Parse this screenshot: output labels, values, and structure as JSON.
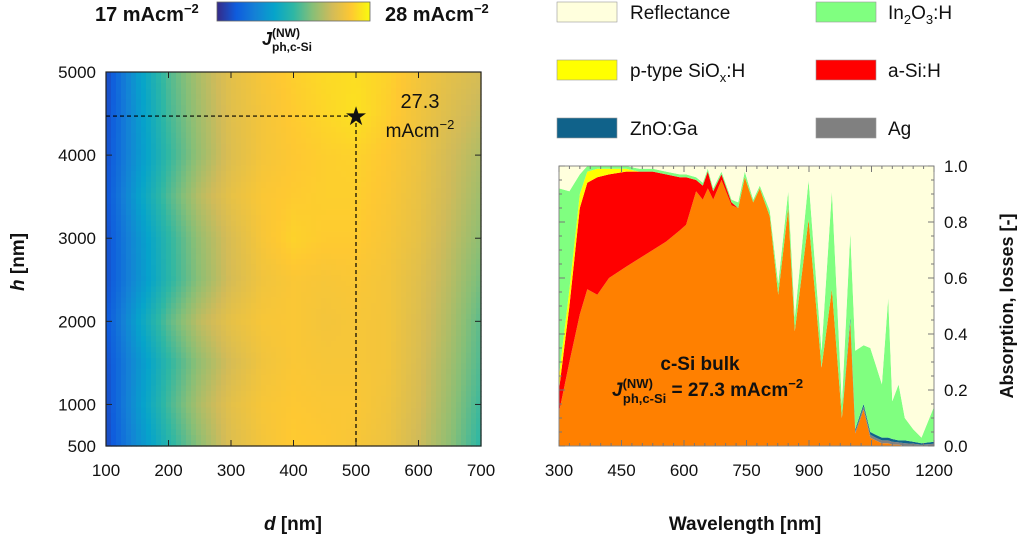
{
  "colorbar": {
    "min_label": "17 mAcm",
    "min_sup": "−2",
    "max_label": "28 mAcm",
    "max_sup": "−2",
    "title_main": "J",
    "title_sup": "(NW)",
    "title_sub": "ph,c-Si",
    "colormap": "parula",
    "min": 17,
    "max": 28
  },
  "legend": {
    "position": "top-right",
    "items": [
      {
        "label": "Reflectance",
        "color": "#ffffdd"
      },
      {
        "label": "In",
        "sub1": "2",
        "mid": "O",
        "sub2": "3",
        "tail": ":H",
        "color": "#80ff80"
      },
      {
        "label": "p-type SiO",
        "sub": "x",
        "tail": ":H",
        "color": "#ffff00"
      },
      {
        "label": "a-Si:H",
        "color": "#ff0000"
      },
      {
        "label": "ZnO:Ga",
        "color": "#10628a"
      },
      {
        "label": "Ag",
        "color": "#808080"
      }
    ]
  },
  "chart_data": [
    {
      "type": "heatmap",
      "xlabel_var": "d",
      "xlabel_unit": " [nm]",
      "ylabel_var": "h",
      "ylabel_unit": " [nm]",
      "xlim": [
        100,
        700
      ],
      "ylim": [
        500,
        5000
      ],
      "xticks": [
        "100",
        "200",
        "300",
        "400",
        "500",
        "600",
        "700"
      ],
      "yticks": [
        "500",
        "1000",
        "2000",
        "3000",
        "4000",
        "5000"
      ],
      "d": [
        100,
        150,
        200,
        250,
        300,
        350,
        400,
        450,
        500,
        550,
        600,
        650,
        700
      ],
      "h": [
        5000,
        4500,
        4000,
        3500,
        3000,
        2500,
        2000,
        1500,
        1000,
        500
      ],
      "values": [
        [
          17.8,
          20.8,
          23.0,
          24.6,
          25.8,
          26.4,
          26.8,
          27.1,
          27.2,
          26.9,
          26.3,
          25.8,
          25.4
        ],
        [
          17.9,
          20.6,
          22.8,
          24.4,
          25.7,
          26.3,
          26.7,
          27.0,
          27.3,
          26.8,
          26.2,
          25.6,
          25.0
        ],
        [
          18.0,
          20.5,
          22.5,
          24.2,
          25.6,
          26.3,
          26.6,
          26.8,
          26.9,
          26.6,
          26.1,
          25.3,
          24.6
        ],
        [
          18.1,
          20.9,
          23.0,
          24.8,
          25.9,
          26.5,
          26.7,
          26.8,
          26.8,
          26.5,
          26.0,
          25.2,
          24.3
        ],
        [
          18.0,
          20.4,
          22.4,
          24.2,
          25.5,
          26.4,
          26.9,
          26.7,
          26.7,
          26.4,
          25.9,
          25.0,
          24.0
        ],
        [
          18.0,
          20.3,
          22.3,
          24.0,
          25.4,
          26.2,
          26.5,
          26.4,
          26.5,
          26.3,
          25.7,
          24.8,
          23.6
        ],
        [
          18.2,
          21.0,
          23.2,
          24.9,
          25.9,
          26.4,
          26.5,
          26.3,
          26.4,
          26.3,
          25.6,
          24.6,
          23.2
        ],
        [
          18.0,
          20.4,
          22.4,
          24.1,
          25.4,
          26.2,
          26.5,
          26.4,
          26.4,
          26.3,
          25.5,
          24.4,
          23.0
        ],
        [
          17.9,
          20.6,
          22.8,
          24.6,
          25.8,
          26.4,
          26.6,
          26.5,
          26.5,
          26.2,
          25.4,
          24.2,
          22.7
        ],
        [
          17.8,
          20.2,
          22.2,
          24.0,
          25.6,
          26.3,
          26.7,
          26.6,
          26.4,
          26.1,
          25.2,
          24.0,
          22.4
        ]
      ],
      "optimum": {
        "d": 500,
        "h": 4470,
        "value_label": "27.3",
        "unit": "mAcm",
        "unit_sup": "−2"
      }
    },
    {
      "type": "area",
      "stacked": true,
      "xlabel": "Wavelength [nm]",
      "ylabel": "Absorption, losses [-]",
      "xlim": [
        300,
        1200
      ],
      "ylim": [
        0,
        1
      ],
      "xticks": [
        "300",
        "450",
        "600",
        "750",
        "900",
        "1050",
        "1200"
      ],
      "yticks": [
        "0.0",
        "0.2",
        "0.4",
        "0.6",
        "0.8",
        "1.0"
      ],
      "x": [
        300,
        325,
        350,
        368,
        392,
        420,
        461,
        493,
        525,
        557,
        590,
        605,
        629,
        645,
        657,
        670,
        690,
        714,
        730,
        746,
        766,
        782,
        806,
        826,
        850,
        866,
        899,
        930,
        955,
        979,
        999,
        1011,
        1031,
        1047,
        1060,
        1075,
        1090,
        1100,
        1115,
        1130,
        1150,
        1170,
        1200
      ],
      "series": [
        {
          "name": "c-Si bulk",
          "color": "#ff8000",
          "values": [
            0.12,
            0.3,
            0.47,
            0.56,
            0.54,
            0.6,
            0.64,
            0.67,
            0.7,
            0.73,
            0.77,
            0.79,
            0.91,
            0.88,
            0.92,
            0.88,
            0.95,
            0.86,
            0.85,
            0.96,
            0.87,
            0.92,
            0.82,
            0.54,
            0.85,
            0.41,
            0.81,
            0.28,
            0.56,
            0.1,
            0.44,
            0.045,
            0.13,
            0.03,
            0.02,
            0.01,
            0.01,
            0.005,
            0.005,
            0,
            0,
            0,
            0
          ]
        },
        {
          "name": "Ag",
          "color": "#808080",
          "values": [
            0,
            0,
            0,
            0,
            0,
            0,
            0,
            0,
            0,
            0,
            0,
            0,
            0,
            0,
            0,
            0,
            0,
            0,
            0,
            0,
            0,
            0,
            0,
            0,
            0,
            0,
            0,
            0,
            0,
            0,
            0.01,
            0.008,
            0.01,
            0.01,
            0.01,
            0.01,
            0.01,
            0.01,
            0.008,
            0.01,
            0.008,
            0.005,
            0.008
          ]
        },
        {
          "name": "ZnO:Ga",
          "color": "#10628a",
          "values": [
            0,
            0,
            0,
            0,
            0,
            0,
            0,
            0,
            0,
            0,
            0,
            0,
            0,
            0,
            0,
            0,
            0,
            0,
            0,
            0,
            0,
            0,
            0,
            0,
            0,
            0,
            0,
            0,
            0,
            0,
            0.01,
            0.007,
            0.01,
            0.01,
            0.01,
            0.01,
            0.01,
            0.01,
            0.007,
            0.01,
            0.007,
            0.005,
            0.007
          ]
        },
        {
          "name": "a-Si:H",
          "color": "#ff0000",
          "values": [
            0.08,
            0.2,
            0.38,
            0.38,
            0.42,
            0.37,
            0.34,
            0.31,
            0.28,
            0.24,
            0.19,
            0.17,
            0.04,
            0.05,
            0.06,
            0.03,
            0.02,
            0.01,
            0,
            0,
            0,
            0,
            0,
            0,
            0,
            0,
            0,
            0,
            0,
            0,
            0,
            0,
            0,
            0,
            0,
            0,
            0,
            0,
            0,
            0,
            0,
            0,
            0
          ]
        },
        {
          "name": "p-type SiOx:H",
          "color": "#ffff00",
          "values": [
            0.05,
            0.06,
            0.05,
            0.04,
            0.03,
            0.02,
            0.01,
            0,
            0,
            0,
            0,
            0,
            0,
            0,
            0,
            0,
            0,
            0,
            0,
            0,
            0,
            0,
            0,
            0,
            0,
            0,
            0,
            0,
            0,
            0,
            0,
            0,
            0,
            0,
            0,
            0,
            0,
            0,
            0,
            0,
            0,
            0,
            0
          ]
        },
        {
          "name": "In2O3:H",
          "color": "#80ff80",
          "values": [
            0.67,
            0.35,
            0.07,
            0.02,
            0.01,
            0.01,
            0.01,
            0.01,
            0.01,
            0.01,
            0.01,
            0.01,
            0.01,
            0.01,
            0.01,
            0.01,
            0.01,
            0.01,
            0.02,
            0.02,
            0.01,
            0.01,
            0.02,
            0.04,
            0.06,
            0.05,
            0.14,
            0.06,
            0.35,
            0.05,
            0.3,
            0.28,
            0.21,
            0.3,
            0.25,
            0.19,
            0.5,
            0.135,
            0.2,
            0.08,
            0.045,
            0.02,
            0.125
          ]
        },
        {
          "name": "Reflectance",
          "color": "#ffffdd",
          "values": "remainder to 1.0"
        }
      ],
      "annotation": {
        "line1": "c-Si bulk",
        "j_main": "J",
        "j_sup": "(NW)",
        "j_sub": "ph,c-Si",
        "value": " = 27.3 mAcm",
        "value_sup": "−2"
      }
    }
  ]
}
